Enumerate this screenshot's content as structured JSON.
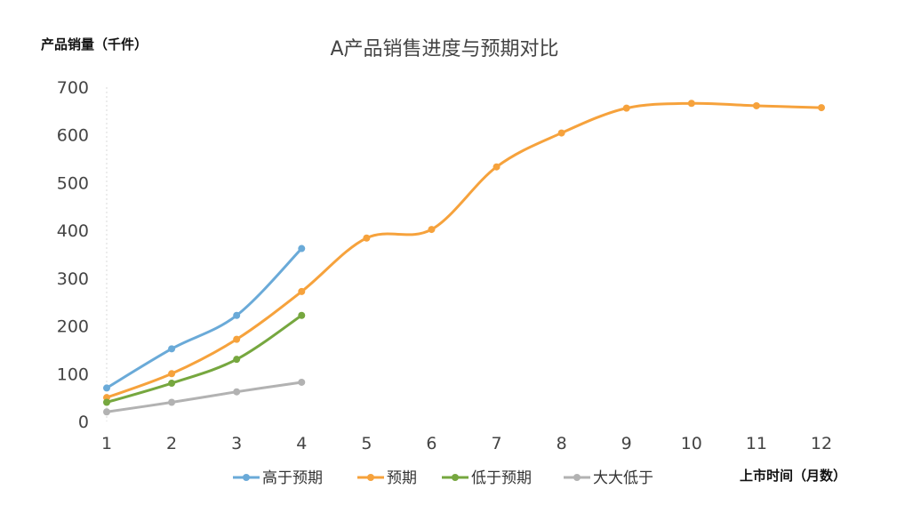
{
  "chart_data": {
    "type": "line",
    "title": "A产品销售进度与预期对比",
    "ylabel": "产品销量（千件）",
    "xlabel": "上市时间（月数）",
    "x": [
      1,
      2,
      3,
      4,
      5,
      6,
      7,
      8,
      9,
      10,
      11,
      12
    ],
    "xlim": [
      1,
      12
    ],
    "ylim": [
      0,
      700
    ],
    "yticks": [
      0,
      100,
      200,
      300,
      400,
      500,
      600,
      700
    ],
    "grid": false,
    "legend": "bottom",
    "series": [
      {
        "name": "高于预期",
        "color": "#6aaad8",
        "x": [
          1,
          2,
          3,
          4
        ],
        "values": [
          70,
          152,
          222,
          362
        ]
      },
      {
        "name": "预期",
        "color": "#f6a23c",
        "x": [
          1,
          2,
          3,
          4,
          5,
          6,
          7,
          8,
          9,
          10,
          11,
          12
        ],
        "values": [
          50,
          100,
          172,
          272,
          384,
          402,
          533,
          604,
          656,
          666,
          661,
          657
        ]
      },
      {
        "name": "低于预期",
        "color": "#76a73f",
        "x": [
          1,
          2,
          3,
          4
        ],
        "values": [
          40,
          80,
          130,
          222
        ]
      },
      {
        "name": "大大低于",
        "color": "#b2b2b2",
        "x": [
          1,
          2,
          3,
          4
        ],
        "values": [
          20,
          40,
          62,
          82
        ]
      }
    ]
  }
}
